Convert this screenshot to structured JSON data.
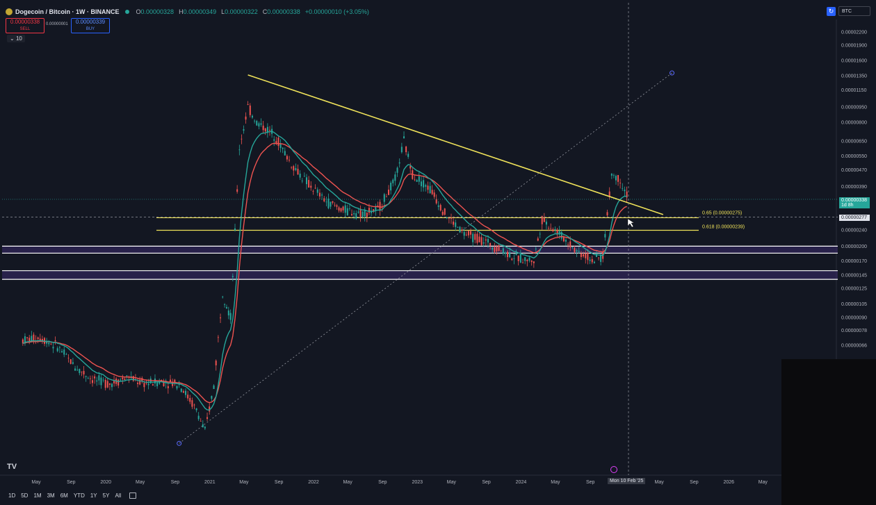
{
  "header": {
    "title": "Dogecoin / Bitcoin · 1W · BINANCE",
    "ohlc": [
      {
        "key": "O",
        "value": "0.00000328"
      },
      {
        "key": "H",
        "value": "0.00000349"
      },
      {
        "key": "L",
        "value": "0.00000322"
      },
      {
        "key": "C",
        "value": "0.00000338"
      },
      {
        "key": "",
        "value": "+0.00000010 (+3.05%)"
      }
    ],
    "sell_price": "0.00000338",
    "sell_label": "SELL",
    "spread": "0.00000001",
    "buy_price": "0.00000339",
    "buy_label": "BUY",
    "interval_chip": "10",
    "currency": "BTC"
  },
  "chart_data": {
    "type": "candlestick",
    "yscale": "log",
    "y_ticks": [
      "0.00002200",
      "0.00001900",
      "0.00001600",
      "0.00001350",
      "0.00001150",
      "0.00000950",
      "0.00000800",
      "0.00000650",
      "0.00000550",
      "0.00000470",
      "0.00000390",
      "0.00000277",
      "0.00000240",
      "0.00000200",
      "0.00000170",
      "0.00000145",
      "0.00000125",
      "0.00000105",
      "0.00000090",
      "0.00000078",
      "0.00000066"
    ],
    "x_ticks": [
      "May",
      "Sep",
      "2020",
      "May",
      "Sep",
      "2021",
      "May",
      "Sep",
      "2022",
      "May",
      "Sep",
      "2023",
      "May",
      "Sep",
      "2024",
      "May",
      "Sep",
      "Mon 10 Feb '25",
      "May",
      "Sep",
      "2026",
      "May"
    ],
    "close_series": [
      {
        "date": "2019-03",
        "close": 7e-07
      },
      {
        "date": "2019-05",
        "close": 7.2e-07
      },
      {
        "date": "2019-07",
        "close": 6.5e-07
      },
      {
        "date": "2019-09",
        "close": 5.2e-07
      },
      {
        "date": "2019-11",
        "close": 4.5e-07
      },
      {
        "date": "2020-01",
        "close": 4.3e-07
      },
      {
        "date": "2020-03",
        "close": 4.6e-07
      },
      {
        "date": "2020-05",
        "close": 4.3e-07
      },
      {
        "date": "2020-07",
        "close": 4.4e-07
      },
      {
        "date": "2020-09",
        "close": 4.3e-07
      },
      {
        "date": "2020-11",
        "close": 3.2e-07
      },
      {
        "date": "2020-12",
        "close": 2.5e-07
      },
      {
        "date": "2021-01",
        "close": 4.2e-07
      },
      {
        "date": "2021-02",
        "close": 1.2e-06
      },
      {
        "date": "2021-03",
        "close": 9e-07
      },
      {
        "date": "2021-04",
        "close": 6e-06
      },
      {
        "date": "2021-05",
        "close": 9.5e-06
      },
      {
        "date": "2021-06",
        "close": 8e-06
      },
      {
        "date": "2021-08",
        "close": 7e-06
      },
      {
        "date": "2021-10",
        "close": 5e-06
      },
      {
        "date": "2021-12",
        "close": 4e-06
      },
      {
        "date": "2022-02",
        "close": 3.3e-06
      },
      {
        "date": "2022-04",
        "close": 3e-06
      },
      {
        "date": "2022-06",
        "close": 2.9e-06
      },
      {
        "date": "2022-08",
        "close": 3e-06
      },
      {
        "date": "2022-10",
        "close": 4.2e-06
      },
      {
        "date": "2022-11",
        "close": 6.5e-06
      },
      {
        "date": "2022-12",
        "close": 4.5e-06
      },
      {
        "date": "2023-02",
        "close": 3.8e-06
      },
      {
        "date": "2023-04",
        "close": 2.8e-06
      },
      {
        "date": "2023-06",
        "close": 2.3e-06
      },
      {
        "date": "2023-08",
        "close": 2.15e-06
      },
      {
        "date": "2023-10",
        "close": 1.95e-06
      },
      {
        "date": "2023-12",
        "close": 1.75e-06
      },
      {
        "date": "2024-02",
        "close": 1.7e-06
      },
      {
        "date": "2024-03",
        "close": 2.7e-06
      },
      {
        "date": "2024-05",
        "close": 2.3e-06
      },
      {
        "date": "2024-07",
        "close": 1.9e-06
      },
      {
        "date": "2024-09",
        "close": 1.7e-06
      },
      {
        "date": "2024-10",
        "close": 1.8e-06
      },
      {
        "date": "2024-11",
        "close": 4.5e-06
      },
      {
        "date": "2024-12",
        "close": 4.2e-06
      },
      {
        "date": "2025-01",
        "close": 3.38e-06
      }
    ],
    "trendlines": [
      {
        "from": {
          "date": "2021-05",
          "price": 1.36e-05
        },
        "to": {
          "date": "2025-05",
          "price": 2.85e-06
        }
      },
      {
        "from": {
          "date": "2020-09",
          "price": 2.2e-07
        },
        "to": {
          "date": "2025-06",
          "price": 1.39e-05
        }
      }
    ],
    "levels": [
      {
        "price": 2.75e-06,
        "label": "0.65 (0.00000275)"
      },
      {
        "price": 2.39e-06,
        "label": "0.618 (0.00000239)"
      }
    ],
    "zones": [
      {
        "low": 1.85e-06,
        "high": 2e-06
      },
      {
        "low": 1.38e-06,
        "high": 1.52e-06
      }
    ],
    "last_price": "0.00000338",
    "last_price_countdown": "1d 8h",
    "crosshair_price": "0.00000277",
    "crosshair_date": "Mon 10 Feb '25"
  },
  "timeframes": [
    "1D",
    "5D",
    "1M",
    "3M",
    "6M",
    "YTD",
    "1Y",
    "5Y",
    "All"
  ],
  "colors": {
    "bg": "#131722",
    "up": "#26a69a",
    "down": "#ef5350",
    "trend": "#f0e35a",
    "ema_fast": "#26a69a",
    "ema_slow": "#ef5350"
  }
}
